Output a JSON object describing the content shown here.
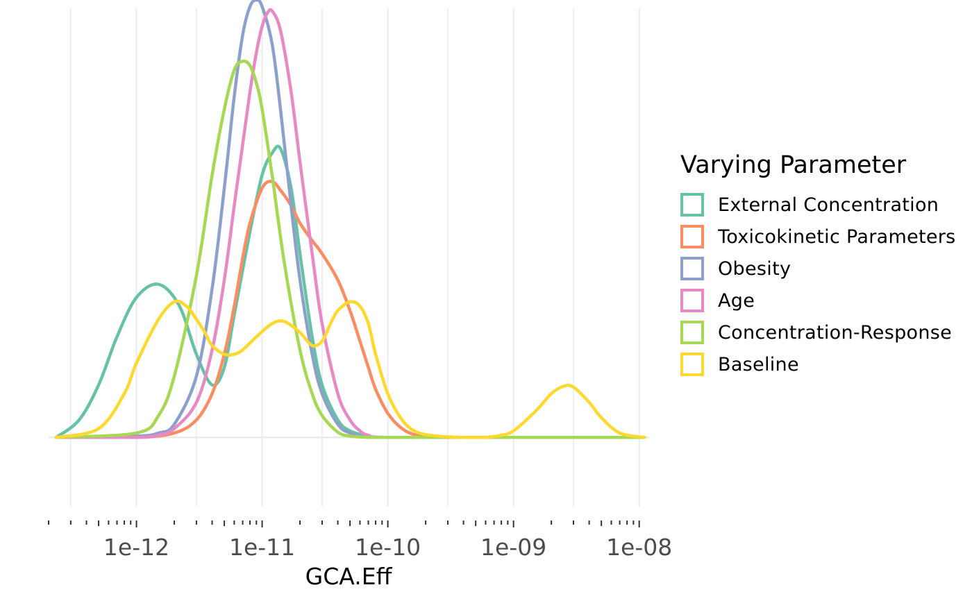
{
  "chart_data": {
    "type": "line",
    "chart_kind": "density",
    "xlabel": "GCA.Eff",
    "x_scale": "log10",
    "xlim": [
      2e-13,
      1.2e-08
    ],
    "x_ticks": [
      {
        "value": 1e-12,
        "label": "1e-12"
      },
      {
        "value": 1e-11,
        "label": "1e-11"
      },
      {
        "value": 1e-10,
        "label": "1e-10"
      },
      {
        "value": 1e-09,
        "label": "1e-09"
      },
      {
        "value": 1e-08,
        "label": "1e-08"
      }
    ],
    "ylim": [
      -0.19,
      1.0
    ],
    "grid": true,
    "legend": {
      "title": "Varying Parameter",
      "placement": "right"
    },
    "series": [
      {
        "name": "External Concentration",
        "color": "#66C2A5",
        "x": [
          2.3e-13,
          3.5e-13,
          5e-13,
          7e-13,
          1e-12,
          1.5e-12,
          2.2e-12,
          3e-12,
          4e-12,
          5e-12,
          6e-12,
          8e-12,
          1e-11,
          1.2e-11,
          1.4e-11,
          1.7e-11,
          2e-11,
          2.5e-11,
          3e-11,
          4e-11,
          5e-11,
          7e-11,
          1e-10,
          1e-09,
          1.1e-08
        ],
        "y": [
          0.0,
          0.04,
          0.12,
          0.23,
          0.32,
          0.35,
          0.3,
          0.19,
          0.12,
          0.16,
          0.28,
          0.47,
          0.6,
          0.65,
          0.66,
          0.57,
          0.42,
          0.23,
          0.12,
          0.04,
          0.015,
          0.003,
          0.0,
          0.0,
          0.0
        ]
      },
      {
        "name": "Toxicokinetic Parameters",
        "color": "#FC8D62",
        "x": [
          2.3e-13,
          1e-12,
          2e-12,
          3e-12,
          4e-12,
          5e-12,
          6e-12,
          7e-12,
          8e-12,
          1e-11,
          1.2e-11,
          1.4e-11,
          1.7e-11,
          2e-11,
          2.5e-11,
          3e-11,
          4e-11,
          5e-11,
          6e-11,
          7e-11,
          8e-11,
          1e-10,
          1.3e-10,
          1.7e-10,
          2.5e-10,
          1e-09,
          1.1e-08
        ],
        "y": [
          0.0,
          0.0,
          0.01,
          0.04,
          0.1,
          0.19,
          0.3,
          0.41,
          0.49,
          0.57,
          0.585,
          0.565,
          0.53,
          0.49,
          0.45,
          0.42,
          0.36,
          0.29,
          0.22,
          0.16,
          0.11,
          0.055,
          0.02,
          0.005,
          0.0,
          0.0,
          0.0
        ]
      },
      {
        "name": "Obesity",
        "color": "#8DA0CB",
        "x": [
          2.3e-13,
          1e-12,
          1.5e-12,
          2e-12,
          3e-12,
          4e-12,
          5e-12,
          6e-12,
          7e-12,
          8e-12,
          9e-12,
          1e-11,
          1.2e-11,
          1.4e-11,
          1.7e-11,
          2e-11,
          2.5e-11,
          3e-11,
          4e-11,
          5e-11,
          7e-11,
          1e-10,
          1e-09,
          1.1e-08
        ],
        "y": [
          0.0,
          0.003,
          0.01,
          0.03,
          0.14,
          0.34,
          0.57,
          0.78,
          0.92,
          0.985,
          1.0,
          0.985,
          0.9,
          0.75,
          0.53,
          0.36,
          0.19,
          0.1,
          0.03,
          0.01,
          0.0,
          0.0,
          0.0,
          0.0
        ]
      },
      {
        "name": "Age",
        "color": "#E78AC3",
        "x": [
          2.3e-13,
          1e-12,
          1.5e-12,
          2e-12,
          3e-12,
          4e-12,
          5e-12,
          6e-12,
          7e-12,
          8e-12,
          9e-12,
          1e-11,
          1.1e-11,
          1.2e-11,
          1.4e-11,
          1.7e-11,
          2e-11,
          2.5e-11,
          3e-11,
          4e-11,
          5e-11,
          6e-11,
          7e-11,
          1e-10,
          1e-09,
          1.1e-08
        ],
        "y": [
          0.0,
          0.0,
          0.005,
          0.02,
          0.08,
          0.2,
          0.36,
          0.53,
          0.67,
          0.79,
          0.88,
          0.94,
          0.97,
          0.975,
          0.93,
          0.79,
          0.63,
          0.42,
          0.26,
          0.1,
          0.04,
          0.015,
          0.005,
          0.0,
          0.0,
          0.0
        ]
      },
      {
        "name": "Concentration-Response",
        "color": "#A6D854",
        "x": [
          2.3e-13,
          1e-12,
          1.5e-12,
          2e-12,
          3e-12,
          4e-12,
          5e-12,
          6e-12,
          7e-12,
          8e-12,
          9e-12,
          1e-11,
          1.2e-11,
          1.5e-11,
          2e-11,
          2.5e-11,
          3e-11,
          4e-11,
          5e-11,
          7e-11,
          1e-10,
          1e-09,
          1.1e-08
        ],
        "y": [
          0.0,
          0.01,
          0.05,
          0.14,
          0.37,
          0.6,
          0.75,
          0.84,
          0.86,
          0.85,
          0.81,
          0.75,
          0.6,
          0.4,
          0.2,
          0.1,
          0.05,
          0.012,
          0.003,
          0.0,
          0.0,
          0.0,
          0.0
        ]
      },
      {
        "name": "Baseline",
        "color": "#FFD92F",
        "x": [
          2.3e-13,
          5e-13,
          8e-13,
          1e-12,
          1.5e-12,
          2e-12,
          2.5e-12,
          3e-12,
          3.5e-12,
          4e-12,
          5e-12,
          6e-12,
          7e-12,
          9e-12,
          1.2e-11,
          1.5e-11,
          2e-11,
          2.5e-11,
          3e-11,
          3.5e-11,
          4e-11,
          5e-11,
          6e-11,
          7e-11,
          8e-11,
          1e-10,
          1.3e-10,
          1.7e-10,
          2.5e-10,
          4e-10,
          6e-10,
          8e-10,
          1e-09,
          1.5e-09,
          2e-09,
          2.5e-09,
          3e-09,
          4e-09,
          5e-09,
          7e-09,
          1.1e-08
        ],
        "y": [
          0.0,
          0.02,
          0.1,
          0.17,
          0.27,
          0.31,
          0.3,
          0.27,
          0.24,
          0.21,
          0.19,
          0.19,
          0.2,
          0.23,
          0.26,
          0.265,
          0.24,
          0.21,
          0.22,
          0.26,
          0.29,
          0.31,
          0.3,
          0.26,
          0.19,
          0.1,
          0.04,
          0.012,
          0.003,
          0.0,
          0.0,
          0.005,
          0.015,
          0.06,
          0.1,
          0.117,
          0.115,
          0.08,
          0.045,
          0.01,
          0.0
        ]
      }
    ]
  }
}
